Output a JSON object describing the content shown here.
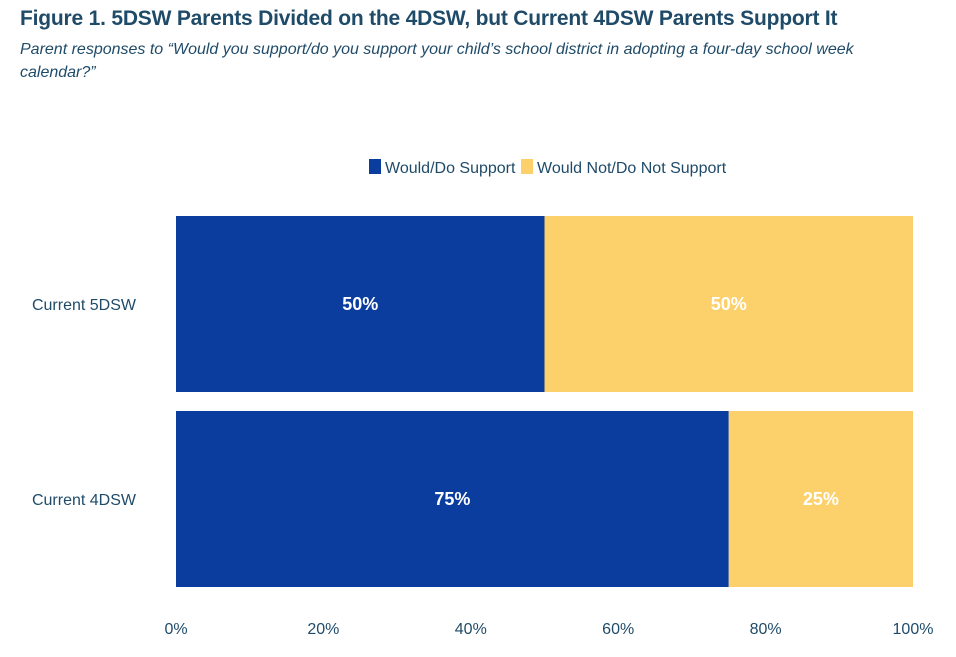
{
  "figure": {
    "title": "Figure 1. 5DSW Parents Divided on the 4DSW, but Current 4DSW Parents Support It",
    "subtitle": "Parent responses to “Would you support/do you support your child’s school district in adopting a four-day school week calendar?”"
  },
  "chart_data": {
    "type": "bar",
    "orientation": "horizontal",
    "stacked": true,
    "categories": [
      "Current 5DSW",
      "Current 4DSW"
    ],
    "series": [
      {
        "name": "Would/Do Support",
        "values": [
          50,
          75
        ],
        "labels": [
          "50%",
          "75%"
        ],
        "color": "#0b3d9e"
      },
      {
        "name": "Would Not/Do Not Support",
        "values": [
          50,
          25
        ],
        "labels": [
          "50%",
          "25%"
        ],
        "color": "#fcd06b"
      }
    ],
    "xlim": [
      0,
      100
    ],
    "xticks": [
      0,
      20,
      40,
      60,
      80,
      100
    ],
    "xtick_labels": [
      "0%",
      "20%",
      "40%",
      "60%",
      "80%",
      "100%"
    ],
    "xlabel": "",
    "ylabel": "",
    "legend_position": "top-center",
    "grid": false
  }
}
